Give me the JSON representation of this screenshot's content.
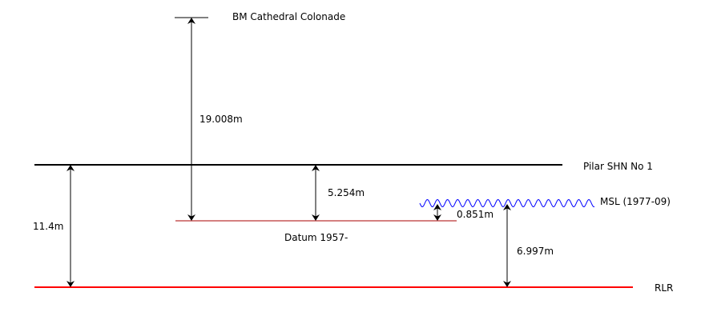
{
  "labels": {
    "bm": "BM Cathedral Colonade",
    "pilar": "Pilar SHN No 1",
    "msl": "MSL (1977-09)",
    "datum": "Datum 1957-",
    "rlr": "RLR"
  },
  "measurements": {
    "bm_to_datum": "19.008m",
    "pilar_to_datum": "5.254m",
    "datum_to_msl": "0.851m",
    "msl_to_rlr": "6.997m",
    "pilar_to_rlr": "11.4m"
  },
  "colors": {
    "reference_line": "#000000",
    "rlr_line": "#ff0000",
    "datum_line": "#aa0000",
    "msl_wave": "#0000ff",
    "arrow": "#000000"
  }
}
